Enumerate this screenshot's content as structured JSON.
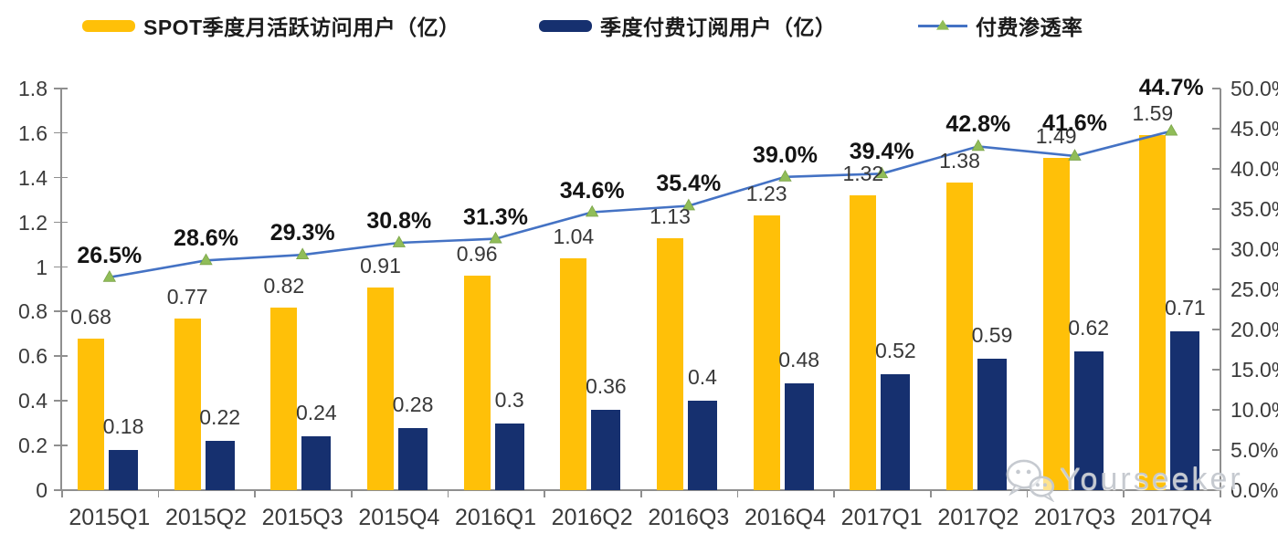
{
  "legend": [
    {
      "label": "SPOT季度月活跃访问用户（亿）",
      "color": "#FFC008",
      "type": "bar-swatch"
    },
    {
      "label": "季度付费订阅用户（亿）",
      "color": "#16306F",
      "type": "bar-swatch"
    },
    {
      "label": "付费渗透率",
      "color": "#4472C4",
      "marker_color": "#90BD58",
      "type": "line-marker"
    }
  ],
  "chart_data": {
    "type": "combo",
    "categories": [
      "2015Q1",
      "2015Q2",
      "2015Q3",
      "2015Q4",
      "2016Q1",
      "2016Q2",
      "2016Q3",
      "2016Q4",
      "2017Q1",
      "2017Q2",
      "2017Q3",
      "2017Q4"
    ],
    "series": [
      {
        "name": "SPOT季度月活跃访问用户（亿）",
        "type": "bar",
        "axis": "left",
        "color": "#FFC008",
        "values": [
          0.68,
          0.77,
          0.82,
          0.91,
          0.96,
          1.04,
          1.13,
          1.23,
          1.32,
          1.38,
          1.49,
          1.59
        ],
        "labels": [
          "0.68",
          "0.77",
          "0.82",
          "0.91",
          "0.96",
          "1.04",
          "1.13",
          "1.23",
          "1.32",
          "1.38",
          "1.49",
          "1.59"
        ]
      },
      {
        "name": "季度付费订阅用户（亿）",
        "type": "bar",
        "axis": "left",
        "color": "#16306F",
        "values": [
          0.18,
          0.22,
          0.24,
          0.28,
          0.3,
          0.36,
          0.4,
          0.48,
          0.52,
          0.59,
          0.62,
          0.71
        ],
        "labels": [
          "0.18",
          "0.22",
          "0.24",
          "0.28",
          "0.3",
          "0.36",
          "0.4",
          "0.48",
          "0.52",
          "0.59",
          "0.62",
          "0.71"
        ]
      },
      {
        "name": "付费渗透率",
        "type": "line",
        "axis": "right",
        "color": "#4472C4",
        "marker": "triangle",
        "marker_color": "#90BD58",
        "values": [
          26.5,
          28.6,
          29.3,
          30.8,
          31.3,
          34.6,
          35.4,
          39.0,
          39.4,
          42.8,
          41.6,
          44.7
        ],
        "labels": [
          "26.5%",
          "28.6%",
          "29.3%",
          "30.8%",
          "31.3%",
          "34.6%",
          "35.4%",
          "39.0%",
          "39.4%",
          "42.8%",
          "41.6%",
          "44.7%"
        ]
      }
    ],
    "left_axis": {
      "min": 0,
      "max": 1.8,
      "step": 0.2,
      "ticks": [
        "0",
        "0.2",
        "0.4",
        "0.6",
        "0.8",
        "1",
        "1.2",
        "1.4",
        "1.6",
        "1.8"
      ]
    },
    "right_axis": {
      "min": 0,
      "max": 50,
      "step": 5,
      "ticks": [
        "0.0%",
        "5.0%",
        "10.0%",
        "15.0%",
        "20.0%",
        "25.0%",
        "30.0%",
        "35.0%",
        "40.0%",
        "45.0%",
        "50.0%"
      ]
    },
    "grid": false,
    "legend_position": "top"
  },
  "watermark": {
    "text": "Yourseeker",
    "icon": "wechat-icon"
  }
}
